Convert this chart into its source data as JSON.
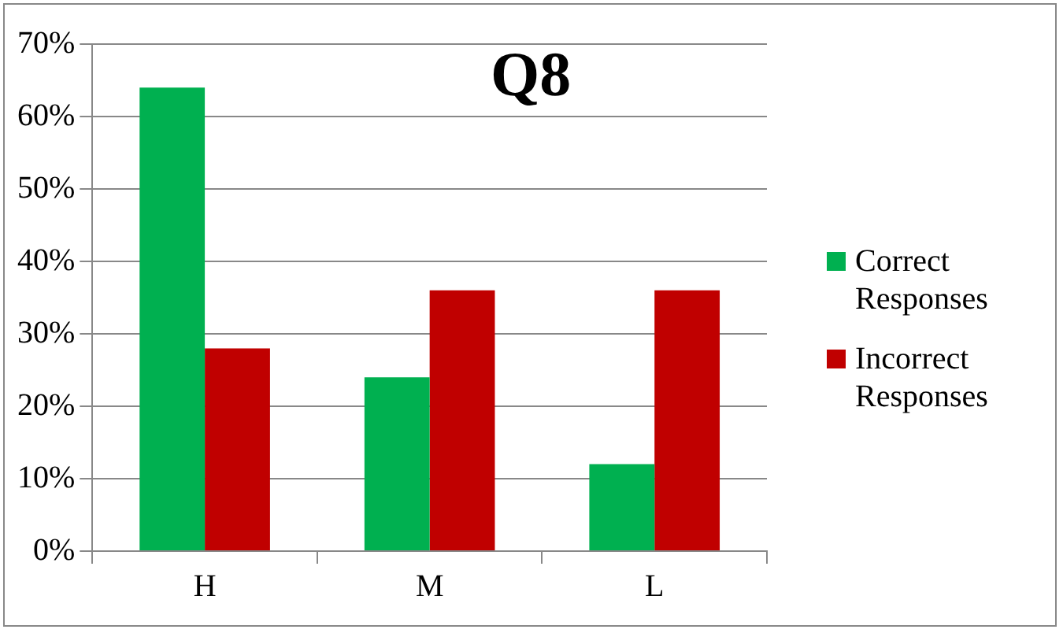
{
  "chart_data": {
    "type": "bar",
    "title": "Q8",
    "categories": [
      "H",
      "M",
      "L"
    ],
    "series": [
      {
        "name": "Correct Responses",
        "color": "#00b050",
        "values": [
          64,
          24,
          12
        ]
      },
      {
        "name": "Incorrect Responses",
        "color": "#c00000",
        "values": [
          28,
          36,
          36
        ]
      }
    ],
    "ylim": [
      0,
      70
    ],
    "yticks": [
      {
        "value": 0,
        "label": "0%"
      },
      {
        "value": 10,
        "label": "10%"
      },
      {
        "value": 20,
        "label": "20%"
      },
      {
        "value": 30,
        "label": "30%"
      },
      {
        "value": 40,
        "label": "40%"
      },
      {
        "value": 50,
        "label": "50%"
      },
      {
        "value": 60,
        "label": "60%"
      },
      {
        "value": 70,
        "label": "70%"
      }
    ],
    "grid": "y",
    "legend": "right"
  }
}
